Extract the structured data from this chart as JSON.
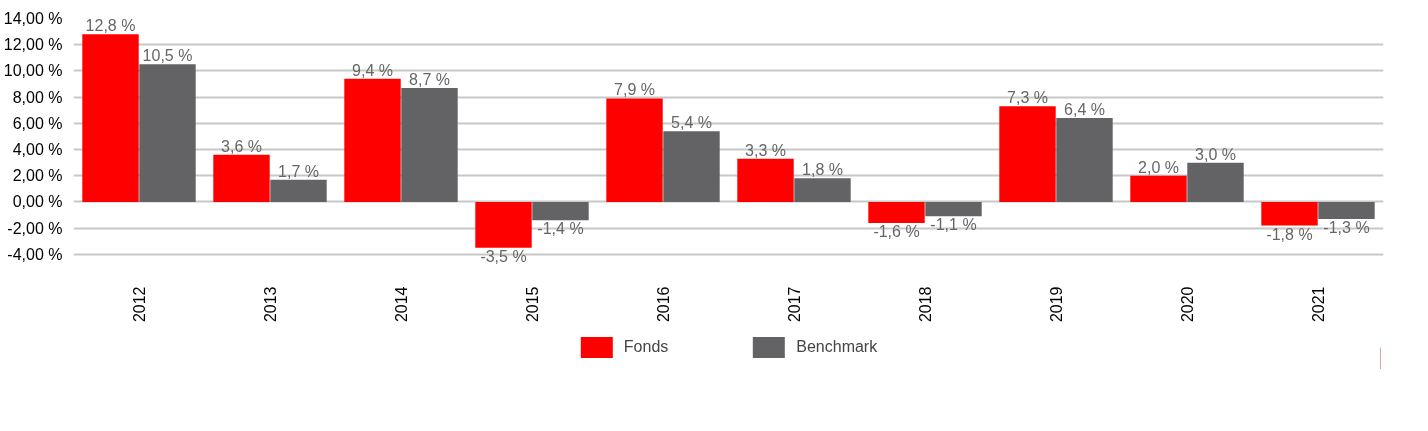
{
  "chart_data": {
    "type": "bar",
    "categories": [
      "2012",
      "2013",
      "2014",
      "2015",
      "2016",
      "2017",
      "2018",
      "2019",
      "2020",
      "2021"
    ],
    "series": [
      {
        "name": "Fonds",
        "color": "#ff0000",
        "values": [
          12.8,
          3.6,
          9.4,
          -3.5,
          7.9,
          3.3,
          -1.6,
          7.3,
          2.0,
          -1.8
        ],
        "value_labels": [
          "12,8 %",
          "3,6 %",
          "9,4 %",
          "-3,5 %",
          "7,9 %",
          "3,3 %",
          "-1,6 %",
          "7,3 %",
          "2,0 %",
          "-1,8 %"
        ]
      },
      {
        "name": "Benchmark",
        "color": "#636366",
        "values": [
          10.5,
          1.7,
          8.7,
          -1.4,
          5.4,
          1.8,
          -1.1,
          6.4,
          3.0,
          -1.3
        ],
        "value_labels": [
          "10,5 %",
          "1,7 %",
          "8,7 %",
          "-1,4 %",
          "5,4 %",
          "1,8 %",
          "-1,1 %",
          "6,4 %",
          "3,0 %",
          "-1,3 %"
        ]
      }
    ],
    "ylim": [
      -4,
      14
    ],
    "yticks": [
      {
        "value": -4,
        "label": "-4,00 %"
      },
      {
        "value": -2,
        "label": "-2,00 %"
      },
      {
        "value": 0,
        "label": "0,00 %"
      },
      {
        "value": 2,
        "label": "2,00 %"
      },
      {
        "value": 4,
        "label": "4,00 %"
      },
      {
        "value": 6,
        "label": "6,00 %"
      },
      {
        "value": 8,
        "label": "8,00 %"
      },
      {
        "value": 10,
        "label": "10,00 %"
      },
      {
        "value": 12,
        "label": "12,00 %"
      },
      {
        "value": 14,
        "label": "14,00 %"
      }
    ],
    "grid": "y",
    "legend": "bottom"
  }
}
